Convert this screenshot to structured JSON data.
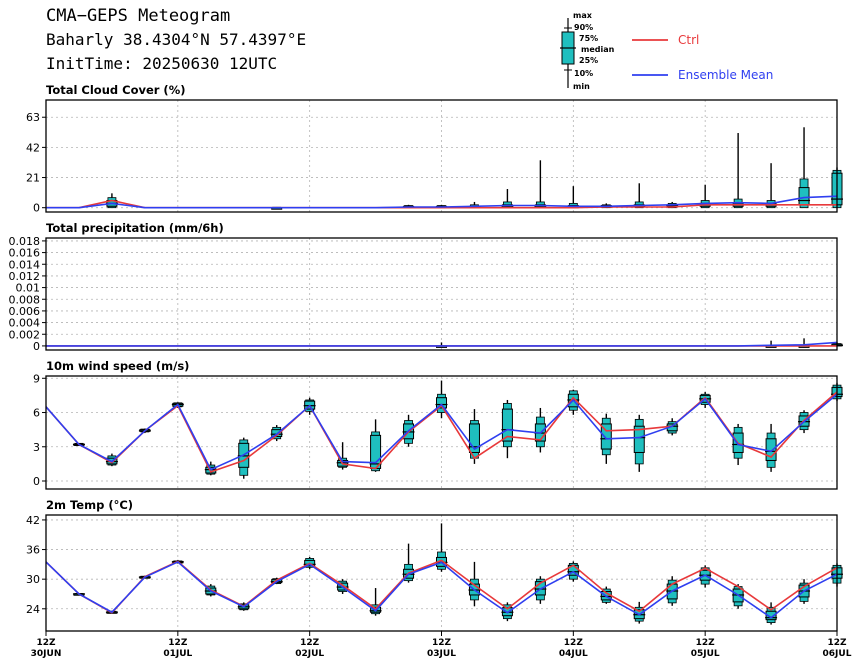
{
  "header": {
    "title": "CMA−GEPS Meteogram",
    "location": "Baharly 38.4304°N 57.4397°E",
    "init": "InitTime: 20250630 12UTC"
  },
  "legend": {
    "box_labels": [
      "max",
      "90%",
      "75%",
      "median",
      "25%",
      "10%",
      "min"
    ],
    "ctrl": "Ctrl",
    "mean": "Ensemble Mean"
  },
  "colors": {
    "ctrl": "#e8393b",
    "mean": "#2f3ff0",
    "box": "#1fbfbf",
    "grid": "#b4b4b4"
  },
  "x_axis": {
    "ticks": [
      {
        "hour": 0,
        "label": [
          "12Z",
          "30JUN"
        ]
      },
      {
        "hour": 24,
        "label": [
          "12Z",
          "01JUL"
        ]
      },
      {
        "hour": 48,
        "label": [
          "12Z",
          "02JUL"
        ]
      },
      {
        "hour": 72,
        "label": [
          "12Z",
          "03JUL"
        ]
      },
      {
        "hour": 96,
        "label": [
          "12Z",
          "04JUL"
        ]
      },
      {
        "hour": 120,
        "label": [
          "12Z",
          "05JUL"
        ]
      },
      {
        "hour": 144,
        "label": [
          "12Z",
          "06JUL"
        ]
      }
    ]
  },
  "chart_data": [
    {
      "type": "box",
      "title": "Total Cloud Cover (%)",
      "ylim": [
        -3,
        75
      ],
      "yticks": [
        0,
        21,
        42,
        63
      ],
      "ytick_labels": [
        "0",
        "21",
        "42",
        "63"
      ],
      "x_hours": [
        0,
        6,
        12,
        18,
        24,
        30,
        36,
        42,
        48,
        54,
        60,
        66,
        72,
        78,
        84,
        90,
        96,
        102,
        108,
        114,
        120,
        126,
        132,
        138,
        144
      ],
      "ctrl": [
        0,
        0,
        5,
        0,
        0,
        0,
        0,
        0,
        0,
        0,
        0,
        0,
        0,
        0,
        0,
        0,
        0,
        0.5,
        0.5,
        0.5,
        2,
        2,
        2,
        2,
        2
      ],
      "mean": [
        0,
        0,
        3,
        0,
        0,
        0,
        0,
        0,
        0,
        0,
        0,
        0.5,
        0.5,
        1,
        1.5,
        1.5,
        1,
        1,
        1.5,
        2,
        3,
        3.5,
        3,
        7,
        8
      ],
      "boxes": [
        {
          "h": 12,
          "min": 0,
          "p10": 0,
          "p25": 1,
          "med": 3,
          "p75": 5,
          "p90": 7,
          "max": 10
        },
        {
          "h": 42,
          "min": 0,
          "p10": 0,
          "p25": 0,
          "med": 0,
          "p75": 0,
          "p90": 0.3,
          "max": 0.5
        },
        {
          "h": 66,
          "min": 0,
          "p10": 0,
          "p25": 0,
          "med": 0.5,
          "p75": 1,
          "p90": 1.5,
          "max": 2
        },
        {
          "h": 72,
          "min": 0,
          "p10": 0,
          "p25": 0,
          "med": 0.5,
          "p75": 1,
          "p90": 1.5,
          "max": 2
        },
        {
          "h": 78,
          "min": 0,
          "p10": 0,
          "p25": 0,
          "med": 0.5,
          "p75": 1,
          "p90": 2,
          "max": 4
        },
        {
          "h": 84,
          "min": 0,
          "p10": 0,
          "p25": 0,
          "med": 1,
          "p75": 2,
          "p90": 4,
          "max": 13
        },
        {
          "h": 90,
          "min": 0,
          "p10": 0,
          "p25": 0,
          "med": 1,
          "p75": 2,
          "p90": 4,
          "max": 33
        },
        {
          "h": 96,
          "min": 0,
          "p10": 0,
          "p25": 0,
          "med": 1,
          "p75": 1.5,
          "p90": 3,
          "max": 15
        },
        {
          "h": 102,
          "min": 0,
          "p10": 0,
          "p25": 0.3,
          "med": 1,
          "p75": 1.5,
          "p90": 2,
          "max": 3
        },
        {
          "h": 108,
          "min": 0,
          "p10": 0,
          "p25": 0.5,
          "med": 1,
          "p75": 2,
          "p90": 4,
          "max": 17
        },
        {
          "h": 114,
          "min": 0,
          "p10": 0,
          "p25": 1,
          "med": 1.5,
          "p75": 2,
          "p90": 3,
          "max": 4
        },
        {
          "h": 120,
          "min": 0,
          "p10": 0,
          "p25": 1,
          "med": 2,
          "p75": 3,
          "p90": 5,
          "max": 16
        },
        {
          "h": 126,
          "min": 0,
          "p10": 0,
          "p25": 1,
          "med": 2,
          "p75": 3,
          "p90": 6,
          "max": 52
        },
        {
          "h": 132,
          "min": 0,
          "p10": 0,
          "p25": 1,
          "med": 2,
          "p75": 3,
          "p90": 5,
          "max": 31
        },
        {
          "h": 138,
          "min": 0,
          "p10": 0,
          "p25": 2,
          "med": 5,
          "p75": 14,
          "p90": 20,
          "max": 56
        },
        {
          "h": 144,
          "min": 0,
          "p10": 0,
          "p25": 2,
          "med": 6,
          "p75": 24,
          "p90": 26,
          "max": 28
        }
      ]
    },
    {
      "type": "box",
      "title": "Total precipitation (mm/6h)",
      "ylim": [
        -0.0007,
        0.0185
      ],
      "yticks": [
        0,
        0.002,
        0.004,
        0.006,
        0.008,
        0.01,
        0.012,
        0.014,
        0.016,
        0.018
      ],
      "ytick_labels": [
        "0",
        "0.002",
        "0.004",
        "0.006",
        "0.008",
        "0.01",
        "0.012",
        "0.014",
        "0.016",
        "0.018"
      ],
      "x_hours": [
        0,
        6,
        12,
        18,
        24,
        30,
        36,
        42,
        48,
        54,
        60,
        66,
        72,
        78,
        84,
        90,
        96,
        102,
        108,
        114,
        120,
        126,
        132,
        138,
        144
      ],
      "ctrl": [
        0,
        0,
        0,
        0,
        0,
        0,
        0,
        0,
        0,
        0,
        0,
        0,
        0,
        0,
        0,
        0,
        0,
        0,
        0,
        0,
        0,
        0,
        0,
        0,
        0
      ],
      "mean": [
        0,
        0,
        0,
        0,
        0,
        0,
        0,
        0,
        0,
        0,
        0,
        0,
        0,
        0,
        0,
        0,
        0,
        0,
        0,
        0,
        0,
        0,
        0.0001,
        0.0002,
        0.0006
      ],
      "boxes": [
        {
          "h": 72,
          "min": 0,
          "p10": 0,
          "p25": 0,
          "med": 0,
          "p75": 0,
          "p90": 0,
          "max": 0.0006
        },
        {
          "h": 132,
          "min": 0,
          "p10": 0,
          "p25": 0,
          "med": 0,
          "p75": 0,
          "p90": 0,
          "max": 0.0009
        },
        {
          "h": 138,
          "min": 0,
          "p10": 0,
          "p25": 0,
          "med": 0,
          "p75": 0,
          "p90": 0,
          "max": 0.0013
        },
        {
          "h": 144,
          "min": 0,
          "p10": 0,
          "p25": 0,
          "med": 0.0001,
          "p75": 0.0003,
          "p90": 0.0004,
          "max": 0.0006
        }
      ]
    },
    {
      "type": "box",
      "title": "10m wind speed (m/s)",
      "ylim": [
        -0.7,
        9.2
      ],
      "yticks": [
        0,
        3,
        6,
        9
      ],
      "ytick_labels": [
        "0",
        "3",
        "6",
        "9"
      ],
      "x_hours": [
        0,
        6,
        12,
        18,
        24,
        30,
        36,
        42,
        48,
        54,
        60,
        66,
        72,
        78,
        84,
        90,
        96,
        102,
        108,
        114,
        120,
        126,
        132,
        138,
        144
      ],
      "ctrl": [
        6.5,
        3.2,
        1.6,
        4.4,
        6.6,
        0.8,
        1.8,
        4.0,
        6.6,
        1.5,
        1.1,
        4.3,
        6.6,
        2.0,
        3.9,
        3.6,
        7.3,
        4.4,
        4.5,
        4.8,
        7.3,
        3.3,
        2.1,
        5.3,
        7.8
      ],
      "mean": [
        6.5,
        3.2,
        1.7,
        4.4,
        6.7,
        1.0,
        2.3,
        4.1,
        6.6,
        1.7,
        1.6,
        4.4,
        6.7,
        2.8,
        4.5,
        4.2,
        7.1,
        3.7,
        3.8,
        4.8,
        7.2,
        3.2,
        2.6,
        5.2,
        7.6
      ],
      "boxes": [
        {
          "h": 6,
          "min": 3.1,
          "p10": 3.1,
          "p25": 3.15,
          "med": 3.2,
          "p75": 3.25,
          "p90": 3.3,
          "max": 3.3
        },
        {
          "h": 12,
          "min": 1.3,
          "p10": 1.4,
          "p25": 1.5,
          "med": 1.7,
          "p75": 2.0,
          "p90": 2.2,
          "max": 2.4
        },
        {
          "h": 18,
          "min": 4.2,
          "p10": 4.3,
          "p25": 4.35,
          "med": 4.4,
          "p75": 4.5,
          "p90": 4.55,
          "max": 4.6
        },
        {
          "h": 24,
          "min": 6.4,
          "p10": 6.5,
          "p25": 6.55,
          "med": 6.7,
          "p75": 6.8,
          "p90": 6.85,
          "max": 6.9
        },
        {
          "h": 30,
          "min": 0.5,
          "p10": 0.6,
          "p25": 0.7,
          "med": 1.0,
          "p75": 1.2,
          "p90": 1.4,
          "max": 1.7
        },
        {
          "h": 36,
          "min": 0.2,
          "p10": 0.5,
          "p25": 1.2,
          "med": 2.2,
          "p75": 3.3,
          "p90": 3.6,
          "max": 3.8
        },
        {
          "h": 42,
          "min": 3.5,
          "p10": 3.7,
          "p25": 3.9,
          "med": 4.1,
          "p75": 4.5,
          "p90": 4.7,
          "max": 4.9
        },
        {
          "h": 48,
          "min": 5.8,
          "p10": 6.1,
          "p25": 6.3,
          "med": 6.6,
          "p75": 7.0,
          "p90": 7.1,
          "max": 7.3
        },
        {
          "h": 54,
          "min": 1.0,
          "p10": 1.2,
          "p25": 1.3,
          "med": 1.6,
          "p75": 1.8,
          "p90": 2.0,
          "max": 3.4
        },
        {
          "h": 60,
          "min": 0.8,
          "p10": 0.9,
          "p25": 1.1,
          "med": 1.5,
          "p75": 4.0,
          "p90": 4.3,
          "max": 5.4
        },
        {
          "h": 66,
          "min": 3.0,
          "p10": 3.3,
          "p25": 3.7,
          "med": 4.3,
          "p75": 5.0,
          "p90": 5.3,
          "max": 5.8
        },
        {
          "h": 72,
          "min": 5.5,
          "p10": 6.0,
          "p25": 6.4,
          "med": 6.7,
          "p75": 7.3,
          "p90": 7.6,
          "max": 8.8
        },
        {
          "h": 78,
          "min": 1.5,
          "p10": 2.0,
          "p25": 2.5,
          "med": 3.0,
          "p75": 5.0,
          "p90": 5.3,
          "max": 6.3
        },
        {
          "h": 84,
          "min": 2.0,
          "p10": 3.0,
          "p25": 3.5,
          "med": 4.5,
          "p75": 6.3,
          "p90": 6.8,
          "max": 7.1
        },
        {
          "h": 90,
          "min": 2.5,
          "p10": 3.0,
          "p25": 3.5,
          "med": 4.2,
          "p75": 5.0,
          "p90": 5.6,
          "max": 6.4
        },
        {
          "h": 96,
          "min": 5.8,
          "p10": 6.2,
          "p25": 6.5,
          "med": 7.1,
          "p75": 7.6,
          "p90": 7.9,
          "max": 8.0
        },
        {
          "h": 102,
          "min": 1.5,
          "p10": 2.3,
          "p25": 2.8,
          "med": 3.7,
          "p75": 5.0,
          "p90": 5.5,
          "max": 5.9
        },
        {
          "h": 108,
          "min": 0.8,
          "p10": 1.5,
          "p25": 2.5,
          "med": 3.8,
          "p75": 4.8,
          "p90": 5.4,
          "max": 5.8
        },
        {
          "h": 114,
          "min": 4.0,
          "p10": 4.2,
          "p25": 4.4,
          "med": 4.8,
          "p75": 5.0,
          "p90": 5.2,
          "max": 5.5
        },
        {
          "h": 120,
          "min": 6.4,
          "p10": 6.7,
          "p25": 6.9,
          "med": 7.2,
          "p75": 7.5,
          "p90": 7.6,
          "max": 7.8
        },
        {
          "h": 126,
          "min": 1.4,
          "p10": 2.0,
          "p25": 2.5,
          "med": 3.2,
          "p75": 4.2,
          "p90": 4.7,
          "max": 5.0
        },
        {
          "h": 132,
          "min": 0.8,
          "p10": 1.2,
          "p25": 1.8,
          "med": 2.6,
          "p75": 3.7,
          "p90": 4.2,
          "max": 5.0
        },
        {
          "h": 138,
          "min": 4.2,
          "p10": 4.5,
          "p25": 4.8,
          "med": 5.2,
          "p75": 5.7,
          "p90": 6.0,
          "max": 6.2
        },
        {
          "h": 144,
          "min": 7.0,
          "p10": 7.2,
          "p25": 7.4,
          "med": 7.6,
          "p75": 8.2,
          "p90": 8.4,
          "max": 8.6
        }
      ]
    },
    {
      "type": "box",
      "title": "2m Temp (°C)",
      "ylim": [
        19.5,
        43
      ],
      "yticks": [
        24,
        30,
        36,
        42
      ],
      "ytick_labels": [
        "24",
        "30",
        "36",
        "42"
      ],
      "x_hours": [
        0,
        6,
        12,
        18,
        24,
        30,
        36,
        42,
        48,
        54,
        60,
        66,
        72,
        78,
        84,
        90,
        96,
        102,
        108,
        114,
        120,
        126,
        132,
        138,
        144
      ],
      "ctrl": [
        33.5,
        27.0,
        23.2,
        30.5,
        33.6,
        27.8,
        24.5,
        29.8,
        33.2,
        28.8,
        24.0,
        31.2,
        33.8,
        28.8,
        24.0,
        29.2,
        32.8,
        27.2,
        23.5,
        29.0,
        32.2,
        28.5,
        23.8,
        28.5,
        32.3
      ],
      "mean": [
        33.5,
        27.0,
        23.3,
        30.4,
        33.5,
        27.6,
        24.4,
        29.5,
        33.0,
        28.4,
        23.6,
        31.0,
        33.4,
        27.8,
        23.2,
        28.0,
        31.5,
        26.5,
        22.8,
        27.6,
        30.8,
        26.8,
        22.2,
        27.6,
        31.0
      ],
      "boxes": [
        {
          "h": 6,
          "min": 26.8,
          "p10": 26.9,
          "p25": 26.95,
          "med": 27.0,
          "p75": 27.05,
          "p90": 27.1,
          "max": 27.2
        },
        {
          "h": 12,
          "min": 23.0,
          "p10": 23.1,
          "p25": 23.15,
          "med": 23.3,
          "p75": 23.4,
          "p90": 23.5,
          "max": 23.6
        },
        {
          "h": 18,
          "min": 30.2,
          "p10": 30.3,
          "p25": 30.35,
          "med": 30.4,
          "p75": 30.5,
          "p90": 30.6,
          "max": 30.7
        },
        {
          "h": 24,
          "min": 33.2,
          "p10": 33.3,
          "p25": 33.4,
          "med": 33.5,
          "p75": 33.6,
          "p90": 33.7,
          "max": 33.9
        },
        {
          "h": 30,
          "min": 26.5,
          "p10": 26.8,
          "p25": 27.0,
          "med": 27.6,
          "p75": 28.2,
          "p90": 28.6,
          "max": 29.0
        },
        {
          "h": 36,
          "min": 23.6,
          "p10": 23.8,
          "p25": 24.0,
          "med": 24.4,
          "p75": 24.8,
          "p90": 25.0,
          "max": 25.3
        },
        {
          "h": 42,
          "min": 29.0,
          "p10": 29.1,
          "p25": 29.3,
          "med": 29.5,
          "p75": 29.9,
          "p90": 30.1,
          "max": 30.3
        },
        {
          "h": 48,
          "min": 32.0,
          "p10": 32.4,
          "p25": 32.7,
          "med": 33.0,
          "p75": 33.8,
          "p90": 34.2,
          "max": 34.5
        },
        {
          "h": 54,
          "min": 27.0,
          "p10": 27.5,
          "p25": 27.8,
          "med": 28.4,
          "p75": 29.2,
          "p90": 29.6,
          "max": 30.0
        },
        {
          "h": 60,
          "min": 22.6,
          "p10": 23.0,
          "p25": 23.3,
          "med": 23.6,
          "p75": 24.3,
          "p90": 24.8,
          "max": 28.2
        },
        {
          "h": 66,
          "min": 29.3,
          "p10": 29.7,
          "p25": 30.2,
          "med": 31.0,
          "p75": 32.0,
          "p90": 33.0,
          "max": 37.2
        },
        {
          "h": 72,
          "min": 31.5,
          "p10": 32.0,
          "p25": 32.6,
          "med": 33.4,
          "p75": 34.4,
          "p90": 35.5,
          "max": 41.3
        },
        {
          "h": 78,
          "min": 24.5,
          "p10": 25.8,
          "p25": 26.8,
          "med": 27.8,
          "p75": 29.0,
          "p90": 30.0,
          "max": 33.5
        },
        {
          "h": 84,
          "min": 21.5,
          "p10": 22.0,
          "p25": 22.6,
          "med": 23.3,
          "p75": 24.2,
          "p90": 24.8,
          "max": 25.3
        },
        {
          "h": 90,
          "min": 25.0,
          "p10": 25.8,
          "p25": 26.8,
          "med": 28.0,
          "p75": 29.5,
          "p90": 30.0,
          "max": 30.6
        },
        {
          "h": 96,
          "min": 29.5,
          "p10": 30.0,
          "p25": 30.8,
          "med": 31.5,
          "p75": 32.8,
          "p90": 33.2,
          "max": 33.6
        },
        {
          "h": 102,
          "min": 25.0,
          "p10": 25.3,
          "p25": 25.8,
          "med": 26.5,
          "p75": 27.5,
          "p90": 28.0,
          "max": 28.5
        },
        {
          "h": 108,
          "min": 21.0,
          "p10": 21.5,
          "p25": 22.0,
          "med": 22.8,
          "p75": 23.8,
          "p90": 24.3,
          "max": 25.4
        },
        {
          "h": 114,
          "min": 24.6,
          "p10": 25.2,
          "p25": 26.0,
          "med": 27.6,
          "p75": 29.0,
          "p90": 29.8,
          "max": 30.6
        },
        {
          "h": 120,
          "min": 28.3,
          "p10": 29.0,
          "p25": 29.8,
          "med": 30.8,
          "p75": 31.8,
          "p90": 32.3,
          "max": 32.8
        },
        {
          "h": 126,
          "min": 24.0,
          "p10": 24.6,
          "p25": 25.4,
          "med": 26.8,
          "p75": 28.0,
          "p90": 28.5,
          "max": 29.0
        },
        {
          "h": 132,
          "min": 20.8,
          "p10": 21.2,
          "p25": 21.8,
          "med": 22.2,
          "p75": 23.5,
          "p90": 24.3,
          "max": 25.3
        },
        {
          "h": 138,
          "min": 25.0,
          "p10": 25.5,
          "p25": 26.4,
          "med": 27.6,
          "p75": 28.8,
          "p90": 29.2,
          "max": 30.0
        },
        {
          "h": 144,
          "min": 28.5,
          "p10": 29.2,
          "p25": 30.2,
          "med": 31.0,
          "p75": 32.3,
          "p90": 32.8,
          "max": 33.2
        }
      ]
    }
  ]
}
